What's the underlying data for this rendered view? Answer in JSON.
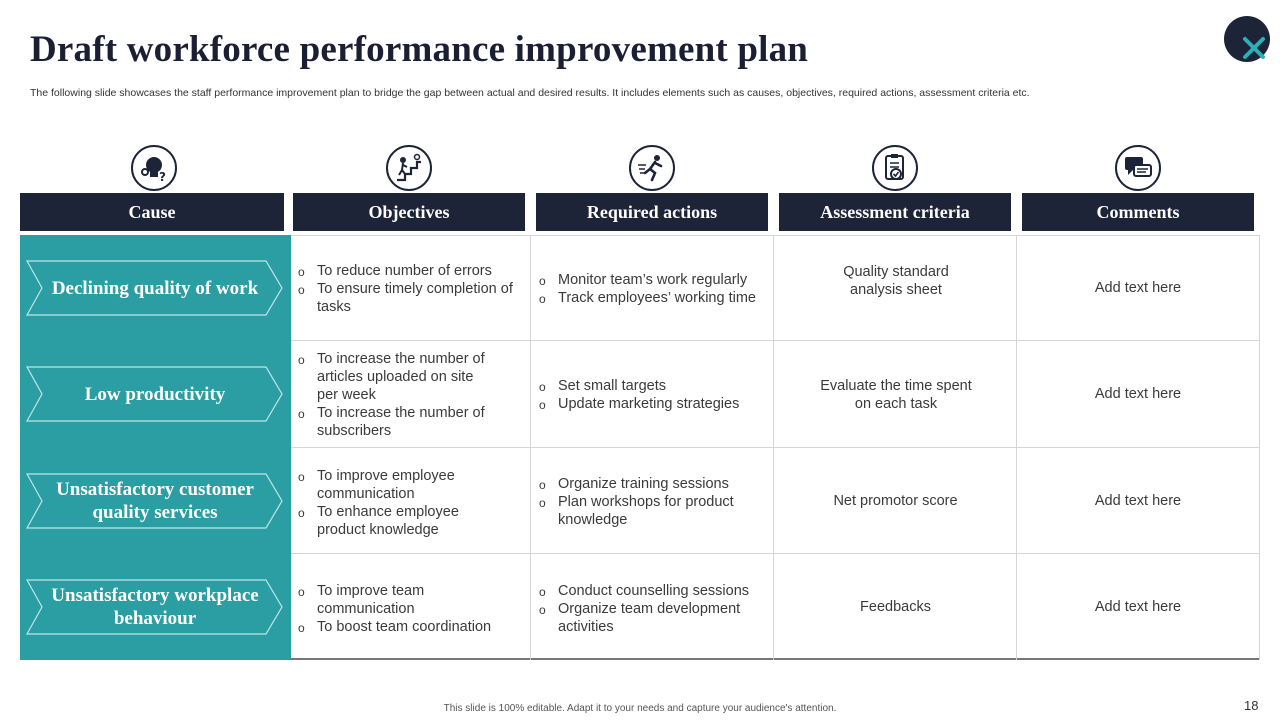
{
  "title": "Draft workforce performance improvement plan",
  "subtitle": "The following slide showcases the staff performance improvement plan to bridge the gap between actual and desired results. It includes elements such as causes, objectives, required actions, assessment criteria etc.",
  "headers": [
    "Cause",
    "Objectives",
    "Required actions",
    "Assessment criteria",
    "Comments"
  ],
  "icons": [
    "lightbulb-gears-icon",
    "stairs-climb-icon",
    "runner-icon",
    "clipboard-check-icon",
    "chat-bubbles-icon"
  ],
  "rows": [
    {
      "cause": "Declining quality of work",
      "objectives": [
        "To reduce number of errors",
        "To ensure timely completion of tasks"
      ],
      "actions": [
        "Monitor team’s work regularly",
        "Track employees’ working time"
      ],
      "criteria": "Quality standard analysis sheet",
      "comment": "Add text here"
    },
    {
      "cause": "Low productivity",
      "objectives": [
        "To increase the number of articles uploaded on site per week",
        "To increase the number of subscribers"
      ],
      "actions": [
        "Set small targets",
        "Update marketing strategies"
      ],
      "criteria": "Evaluate the time spent on each task",
      "comment": "Add text here"
    },
    {
      "cause": "Unsatisfactory customer quality services",
      "objectives": [
        "To improve employee communication",
        "To enhance employee product knowledge"
      ],
      "actions": [
        "Organize training sessions",
        "Plan workshops for product knowledge"
      ],
      "criteria": "Net promotor score",
      "comment": "Add text here"
    },
    {
      "cause": "Unsatisfactory workplace behaviour",
      "objectives": [
        "To improve team communication",
        "To boost team coordination"
      ],
      "actions": [
        "Conduct counselling sessions",
        "Organize team development activities"
      ],
      "criteria": "Feedbacks",
      "comment": "Add text here"
    }
  ],
  "footer": "This slide is 100% editable. Adapt it to your needs and capture your audience's attention.",
  "page_number": "18",
  "colors": {
    "navy": "#1d2437",
    "teal": "#2b9ea4",
    "accent": "#2bb0b6"
  }
}
